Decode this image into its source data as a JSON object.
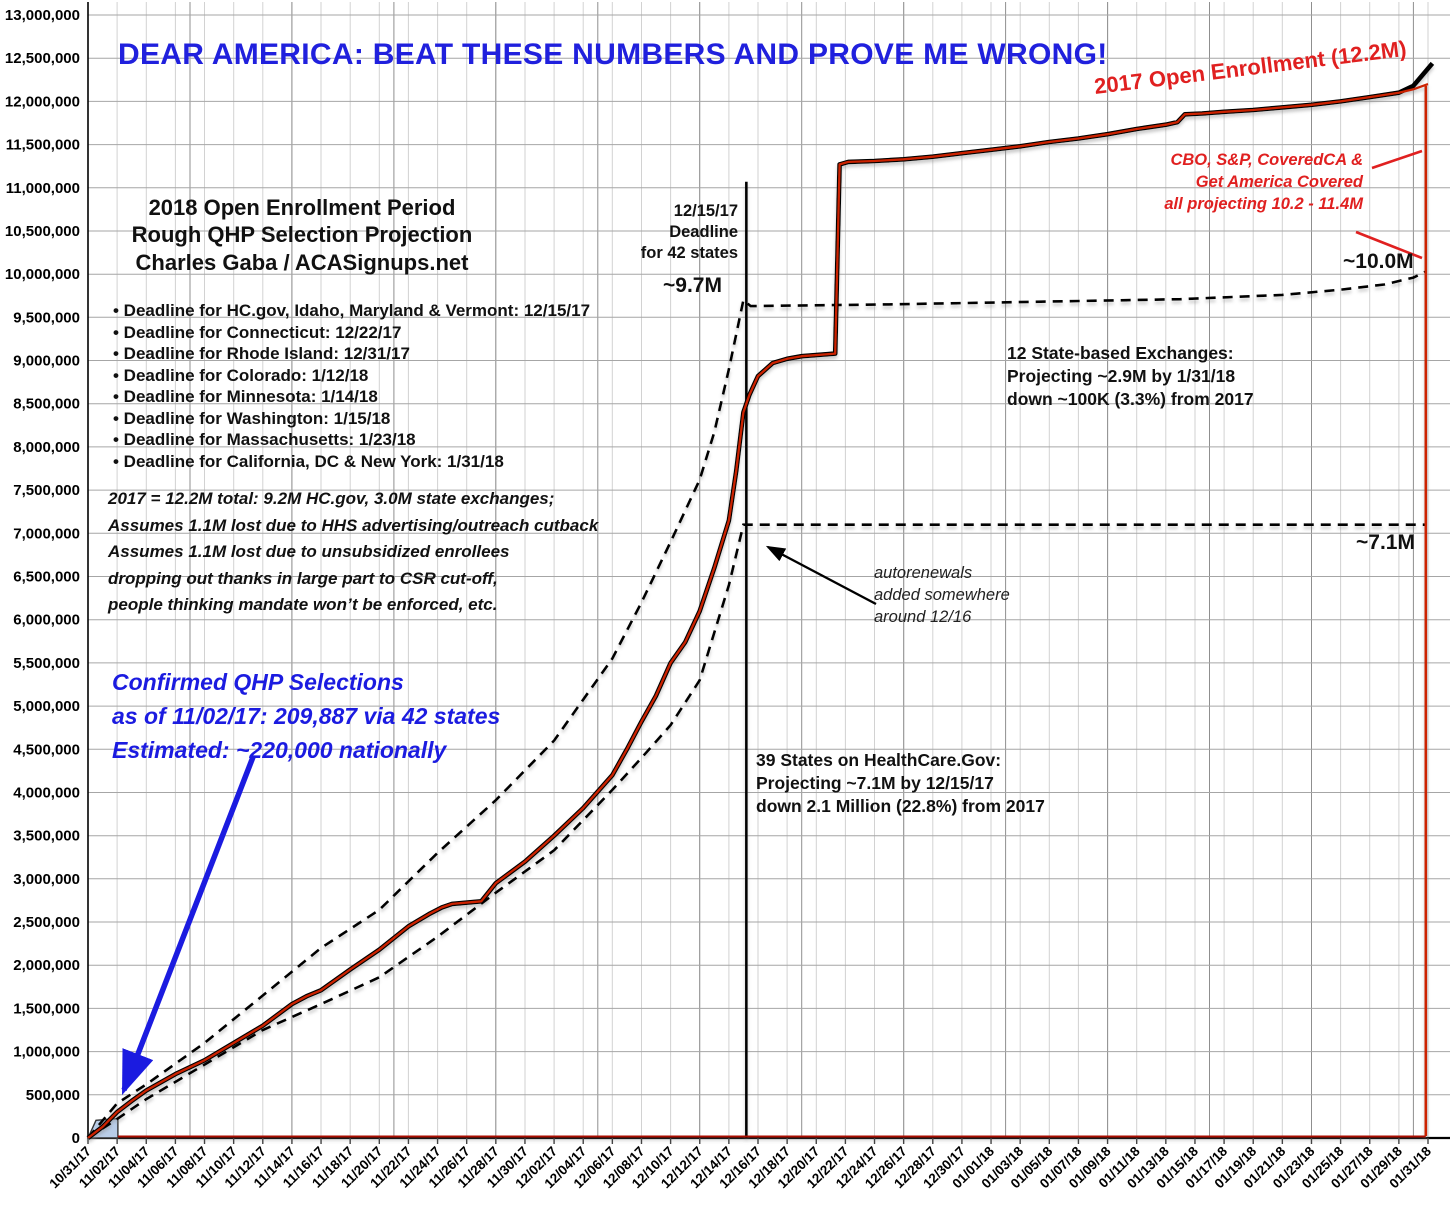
{
  "banner": {
    "text": "DEAR AMERICA: BEAT THESE NUMBERS AND PROVE ME WRONG!",
    "color": "#2020dd"
  },
  "chart_title": "2018 Open Enrollment Period\nRough QHP Selection Projection\nCharles Gaba / ACASignups.net",
  "deadline_bullets": "• Deadline for HC.gov, Idaho, Maryland & Vermont: 12/15/17\n• Deadline for Connecticut: 12/22/17\n• Deadline for Rhode Island: 12/31/17\n• Deadline for Colorado: 1/12/18\n• Deadline for Minnesota: 1/14/18\n• Deadline for Washington: 1/15/18\n• Deadline for Massachusetts: 1/23/18\n• Deadline for California, DC & New York: 1/31/18",
  "assumptions_note": "2017 = 12.2M total: 9.2M HC.gov, 3.0M state exchanges;\nAssumes 1.1M lost due to HHS advertising/outreach cutback\nAssumes 1.1M lost due to unsubsidized enrollees\n  dropping out thanks in large part to CSR cut-off,\n  people thinking mandate won’t be enforced, etc.",
  "confirmed_note": "Confirmed QHP Selections\nas of 11/02/17: 209,887 via 42 states\nEstimated: ~220,000 nationally",
  "deadline_marker": "12/15/17\nDeadline\nfor 42 states",
  "labels": {
    "upper_at_deadline": "~9.7M",
    "upper_end": "~10.0M",
    "lower_end": "~7.1M",
    "series_2017": "2017 Open Enrollment (12.2M)"
  },
  "cbo_note": "CBO, S&P, CoveredCA &\nGet America Covered\nall projecting 10.2 - 11.4M",
  "state_exchanges_note": "12 State-based Exchanges:\nProjecting ~2.9M by 1/31/18\ndown ~100K (3.3%) from 2017",
  "healthcare_gov_note": "39 States on HealthCare.Gov:\nProjecting ~7.1M by 12/15/17\ndown 2.1 Million (22.8%) from 2017",
  "autorenewals_note": "autorenewals\nadded somewhere\naround 12/16",
  "colors": {
    "line_red": "#cc2200",
    "line_black": "#000000",
    "dashed": "#000000",
    "annotation_red": "#e02020",
    "blue_text": "#1b1be0",
    "grid_h": "#a6a6a6",
    "grid_v": "#d2d2d2",
    "grid_v_week": "#8f8f8f",
    "wedge_fill": "#b9cde8"
  },
  "chart_data": {
    "type": "line",
    "title": "2018 Open Enrollment Period Rough QHP Selection Projection — Charles Gaba / ACASignups.net",
    "x_axis": {
      "unit": "date (every 2 days)",
      "day0": "10/31/17",
      "day_max": 92,
      "days_per_tick": 2,
      "tick_labels": [
        "10/31/17",
        "11/02/17",
        "11/04/17",
        "11/06/17",
        "11/08/17",
        "11/10/17",
        "11/12/17",
        "11/14/17",
        "11/16/17",
        "11/18/17",
        "11/20/17",
        "11/22/17",
        "11/24/17",
        "11/26/17",
        "11/28/17",
        "11/30/17",
        "12/02/17",
        "12/04/17",
        "12/06/17",
        "12/08/17",
        "12/10/17",
        "12/12/17",
        "12/14/17",
        "12/16/17",
        "12/18/17",
        "12/20/17",
        "12/22/17",
        "12/24/17",
        "12/26/17",
        "12/28/17",
        "12/30/17",
        "01/01/18",
        "01/03/18",
        "01/05/18",
        "01/07/18",
        "01/09/18",
        "01/11/18",
        "01/13/18",
        "01/15/18",
        "01/17/18",
        "01/19/18",
        "01/21/18",
        "01/23/18",
        "01/25/18",
        "01/27/18",
        "01/29/18",
        "01/31/18"
      ]
    },
    "y_axis": {
      "min": 0,
      "max": 13000000,
      "step": 500000,
      "tick_labels": [
        "0",
        "500,000",
        "1,000,000",
        "1,500,000",
        "2,000,000",
        "2,500,000",
        "3,000,000",
        "3,500,000",
        "4,000,000",
        "4,500,000",
        "5,000,000",
        "5,500,000",
        "6,000,000",
        "6,500,000",
        "7,000,000",
        "7,500,000",
        "8,000,000",
        "8,500,000",
        "9,000,000",
        "9,500,000",
        "10,000,000",
        "10,500,000",
        "11,000,000",
        "11,500,000",
        "12,000,000",
        "12,500,000",
        "13,000,000"
      ]
    },
    "grid": {
      "horizontal": true,
      "vertical": true,
      "weekly_darker_every_days": 7
    },
    "unit_of_points": "millions of QHP selections; x = days after 10/31/17",
    "series": [
      {
        "name": "2017 Open Enrollment actual (12.2M final)",
        "style": "solid",
        "points": [
          [
            0,
            0
          ],
          [
            1,
            0.13
          ],
          [
            2,
            0.3
          ],
          [
            3,
            0.43
          ],
          [
            4,
            0.55
          ],
          [
            6,
            0.74
          ],
          [
            8,
            0.9
          ],
          [
            10,
            1.1
          ],
          [
            12,
            1.3
          ],
          [
            14,
            1.55
          ],
          [
            15,
            1.64
          ],
          [
            16,
            1.71
          ],
          [
            18,
            1.95
          ],
          [
            20,
            2.18
          ],
          [
            22,
            2.45
          ],
          [
            23.5,
            2.6
          ],
          [
            24.3,
            2.67
          ],
          [
            25,
            2.71
          ],
          [
            27,
            2.74
          ],
          [
            28,
            2.95
          ],
          [
            30,
            3.2
          ],
          [
            32,
            3.5
          ],
          [
            34,
            3.82
          ],
          [
            36,
            4.2
          ],
          [
            37,
            4.5
          ],
          [
            38,
            4.82
          ],
          [
            39,
            5.12
          ],
          [
            40,
            5.5
          ],
          [
            41,
            5.74
          ],
          [
            42,
            6.1
          ],
          [
            43,
            6.6
          ],
          [
            44,
            7.15
          ],
          [
            44.5,
            7.72
          ],
          [
            45,
            8.4
          ],
          [
            45.4,
            8.6
          ],
          [
            46,
            8.82
          ],
          [
            47,
            8.97
          ],
          [
            48,
            9.02
          ],
          [
            49,
            9.05
          ],
          [
            51.3,
            9.08
          ],
          [
            51.6,
            11.27
          ],
          [
            52.2,
            11.3
          ],
          [
            54,
            11.31
          ],
          [
            56,
            11.33
          ],
          [
            58,
            11.36
          ],
          [
            60,
            11.4
          ],
          [
            62,
            11.44
          ],
          [
            64,
            11.48
          ],
          [
            66,
            11.53
          ],
          [
            68,
            11.57
          ],
          [
            70,
            11.62
          ],
          [
            72,
            11.68
          ],
          [
            74,
            11.73
          ],
          [
            74.8,
            11.76
          ],
          [
            75.3,
            11.85
          ],
          [
            76.5,
            11.86
          ],
          [
            78,
            11.88
          ],
          [
            80,
            11.9
          ],
          [
            82,
            11.93
          ],
          [
            84,
            11.96
          ],
          [
            86,
            12.0
          ],
          [
            88,
            12.05
          ],
          [
            90,
            12.1
          ]
        ],
        "red_tail": [
          [
            91,
            12.14
          ],
          [
            92,
            12.2
          ]
        ],
        "black_tail": [
          [
            91,
            12.18
          ],
          [
            92.3,
            12.44
          ]
        ]
      },
      {
        "name": "2018 upper projection (~9.7M by 12/15, ~10.0M by 1/31)",
        "style": "dashed",
        "points": [
          [
            0,
            0
          ],
          [
            2,
            0.4
          ],
          [
            4,
            0.62
          ],
          [
            8,
            1.1
          ],
          [
            12,
            1.65
          ],
          [
            16,
            2.2
          ],
          [
            20,
            2.64
          ],
          [
            24,
            3.3
          ],
          [
            28,
            3.91
          ],
          [
            32,
            4.6
          ],
          [
            36,
            5.55
          ],
          [
            38,
            6.2
          ],
          [
            40,
            6.9
          ],
          [
            42,
            7.62
          ],
          [
            43,
            8.17
          ],
          [
            44,
            8.9
          ],
          [
            45,
            9.7
          ],
          [
            45.5,
            9.63
          ],
          [
            55,
            9.65
          ],
          [
            65,
            9.68
          ],
          [
            75,
            9.71
          ],
          [
            82,
            9.76
          ],
          [
            86,
            9.82
          ],
          [
            89,
            9.88
          ],
          [
            91,
            9.96
          ],
          [
            91.85,
            10.03
          ]
        ]
      },
      {
        "name": "2018 lower projection (~7.1M by 12/15, flat after)",
        "style": "dashed",
        "points": [
          [
            0,
            0
          ],
          [
            2,
            0.22
          ],
          [
            4,
            0.45
          ],
          [
            8,
            0.85
          ],
          [
            12,
            1.25
          ],
          [
            16,
            1.55
          ],
          [
            20,
            1.86
          ],
          [
            24,
            2.33
          ],
          [
            28,
            2.84
          ],
          [
            32,
            3.33
          ],
          [
            36,
            4.03
          ],
          [
            38,
            4.4
          ],
          [
            40,
            4.78
          ],
          [
            42,
            5.3
          ],
          [
            43,
            5.85
          ],
          [
            44,
            6.4
          ],
          [
            45,
            7.1
          ],
          [
            45.2,
            7.1
          ],
          [
            91.85,
            7.1
          ]
        ]
      }
    ],
    "markers": {
      "deadline_vline": {
        "day": 45.2,
        "top_value": 11.07,
        "label": "12/15/17 Deadline for 42 states"
      },
      "right_red_vline": {
        "day": 91.85,
        "top_value": 12.18
      },
      "bottom_red_line": {
        "from_day": 2.05,
        "to_day": 91.85,
        "value": 0.018
      },
      "confirmed_wedge_points": [
        [
          0,
          0
        ],
        [
          0.55,
          0.205
        ],
        [
          2.05,
          0.225
        ],
        [
          2.05,
          0
        ]
      ],
      "blue_arrow": {
        "from": [
          253,
          757
        ],
        "to": [
          124,
          1090
        ]
      },
      "autorenewals_arrow": {
        "from": [
          876,
          604
        ],
        "to": [
          768,
          547
        ]
      },
      "cbo_pointer_upper": {
        "from": [
          1372,
          168
        ],
        "to": [
          1422,
          151
        ]
      },
      "cbo_pointer_lower": {
        "from": [
          1356,
          232
        ],
        "to": [
          1422,
          258
        ]
      }
    }
  }
}
